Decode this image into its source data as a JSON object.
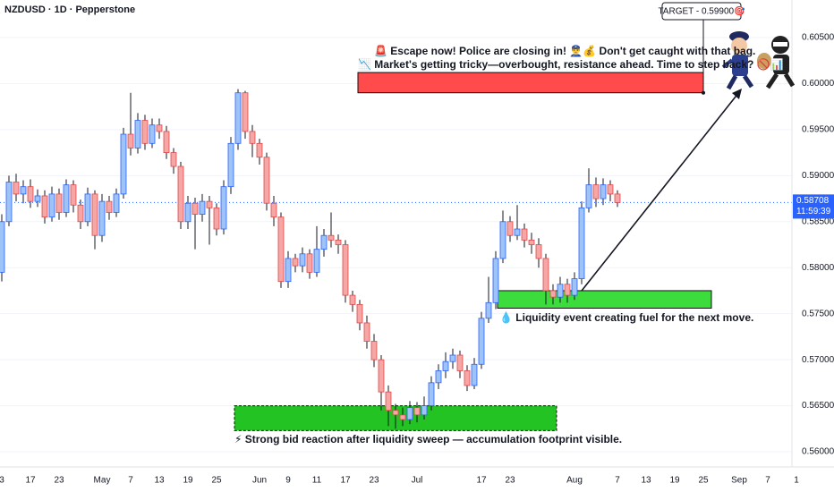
{
  "chart_data": {
    "type": "candlestick",
    "title": "NZDUSD · 1D · Pepperstone",
    "categories": [
      "3",
      null,
      null,
      null,
      "17",
      null,
      null,
      null,
      "23",
      null,
      null,
      null,
      null,
      null,
      "May",
      null,
      null,
      null,
      "7",
      null,
      null,
      null,
      "13",
      null,
      null,
      null,
      "19",
      null,
      null,
      null,
      "25",
      null,
      null,
      null,
      null,
      null,
      "Jun",
      null,
      null,
      null,
      "9",
      null,
      null,
      null,
      "11",
      null,
      null,
      null,
      "17",
      null,
      null,
      null,
      "23",
      null,
      null,
      null,
      null,
      null,
      "Jul",
      null,
      null,
      null,
      null,
      null,
      null,
      null,
      null,
      "17",
      null,
      null,
      null,
      "23",
      null,
      null,
      null,
      null,
      null,
      null,
      null,
      null,
      "Aug",
      null,
      null,
      null,
      null,
      null,
      "7",
      null,
      null,
      null,
      "13",
      null,
      null,
      null,
      "19",
      null,
      null,
      null,
      "25",
      null,
      null,
      null,
      null,
      "Sep",
      null,
      null,
      null,
      "7",
      null,
      null,
      null,
      "1"
    ],
    "open": [
      0.5795,
      0.585,
      0.5893,
      0.588,
      0.5888,
      0.5872,
      0.5878,
      0.5855,
      0.588,
      0.586,
      0.589,
      0.5868,
      0.585,
      0.588,
      0.5835,
      0.5872,
      0.586,
      0.588,
      0.5945,
      0.593,
      0.596,
      0.5935,
      0.5955,
      0.5948,
      0.5925,
      0.591,
      0.585,
      0.587,
      0.5858,
      0.5872,
      0.5865,
      0.5842,
      0.5888,
      0.5935,
      0.599,
      0.5948,
      0.5935,
      0.592,
      0.587,
      0.5855,
      0.5785,
      0.581,
      0.5802,
      0.5815,
      0.5795,
      0.582,
      0.5835,
      0.583,
      0.5825,
      0.577,
      0.576,
      0.574,
      0.572,
      0.57,
      0.5665,
      0.5645,
      0.564,
      0.5635,
      0.5648,
      0.564,
      0.565,
      0.5675,
      0.5688,
      0.5698,
      0.5705,
      0.5688,
      0.5672,
      0.5695,
      0.5745,
      0.5762,
      0.581,
      0.585,
      0.5835,
      0.5842,
      0.583,
      0.5825,
      0.581,
      0.5775,
      0.5768,
      0.5782,
      0.577,
      0.5788,
      0.5865,
      0.589,
      0.5875,
      0.589,
      0.588,
      null,
      null,
      null,
      null,
      null,
      null,
      null,
      null,
      null,
      null,
      null,
      null,
      null,
      null,
      null,
      null,
      null,
      null,
      null,
      null,
      null,
      null,
      null,
      null,
      null
    ],
    "high": [
      0.5858,
      0.59,
      0.5902,
      0.5895,
      0.5896,
      0.5885,
      0.5884,
      0.5888,
      0.5886,
      0.5896,
      0.5895,
      0.5874,
      0.5887,
      0.5884,
      0.588,
      0.5878,
      0.5886,
      0.5952,
      0.599,
      0.5968,
      0.5966,
      0.5962,
      0.5962,
      0.5954,
      0.593,
      0.5915,
      0.5878,
      0.5876,
      0.588,
      0.5878,
      0.587,
      0.5895,
      0.5942,
      0.5994,
      0.5992,
      0.5955,
      0.594,
      0.5925,
      0.5878,
      0.586,
      0.5818,
      0.5815,
      0.5822,
      0.582,
      0.5845,
      0.5842,
      0.586,
      0.5836,
      0.583,
      0.5775,
      0.5765,
      0.5748,
      0.5728,
      0.5705,
      0.5672,
      0.5652,
      0.5648,
      0.5655,
      0.5654,
      0.566,
      0.5682,
      0.5695,
      0.5708,
      0.5712,
      0.571,
      0.5694,
      0.5702,
      0.5752,
      0.579,
      0.5818,
      0.5862,
      0.5856,
      0.5868,
      0.5848,
      0.5838,
      0.5832,
      0.5815,
      0.5782,
      0.579,
      0.5788,
      0.5795,
      0.5872,
      0.5908,
      0.5898,
      0.5897,
      0.5895,
      0.5884,
      null,
      null,
      null,
      null,
      null,
      null,
      null,
      null,
      null,
      null,
      null,
      null,
      null,
      null,
      null,
      null,
      null,
      null,
      null,
      null,
      null,
      null,
      null,
      null,
      null
    ],
    "low": [
      0.5785,
      0.5845,
      0.5872,
      0.587,
      0.5865,
      0.5866,
      0.5848,
      0.585,
      0.5852,
      0.5855,
      0.586,
      0.5842,
      0.5845,
      0.582,
      0.5828,
      0.5852,
      0.5855,
      0.5875,
      0.5922,
      0.5924,
      0.5928,
      0.593,
      0.594,
      0.5918,
      0.5902,
      0.5842,
      0.5842,
      0.582,
      0.585,
      0.5825,
      0.5835,
      0.5836,
      0.588,
      0.5928,
      0.594,
      0.592,
      0.5912,
      0.5862,
      0.5845,
      0.5778,
      0.5778,
      0.5795,
      0.5795,
      0.5788,
      0.579,
      0.5812,
      0.5822,
      0.5815,
      0.5762,
      0.5752,
      0.5732,
      0.5712,
      0.5692,
      0.5645,
      0.5628,
      0.5625,
      0.5628,
      0.563,
      0.5632,
      0.5635,
      0.5645,
      0.5668,
      0.568,
      0.569,
      0.568,
      0.5666,
      0.5668,
      0.569,
      0.574,
      0.5755,
      0.5805,
      0.5828,
      0.583,
      0.5822,
      0.5815,
      0.58,
      0.576,
      0.576,
      0.5762,
      0.5762,
      0.5765,
      0.5782,
      0.586,
      0.5866,
      0.5868,
      0.5872,
      0.5866,
      null,
      null,
      null,
      null,
      null,
      null,
      null,
      null,
      null,
      null,
      null,
      null,
      null,
      null,
      null,
      null,
      null,
      null,
      null,
      null,
      null,
      null,
      null,
      null,
      null
    ],
    "close": [
      0.585,
      0.5893,
      0.588,
      0.5888,
      0.5872,
      0.5878,
      0.5855,
      0.588,
      0.586,
      0.589,
      0.5868,
      0.585,
      0.588,
      0.5835,
      0.5872,
      0.586,
      0.588,
      0.5945,
      0.593,
      0.596,
      0.5935,
      0.5955,
      0.5948,
      0.5925,
      0.591,
      0.585,
      0.587,
      0.5858,
      0.5872,
      0.5865,
      0.5842,
      0.5888,
      0.5935,
      0.599,
      0.5948,
      0.5935,
      0.592,
      0.587,
      0.5855,
      0.5785,
      0.581,
      0.5802,
      0.5815,
      0.5795,
      0.582,
      0.5835,
      0.583,
      0.5825,
      0.577,
      0.576,
      0.574,
      0.572,
      0.57,
      0.5665,
      0.5645,
      0.564,
      0.5635,
      0.5648,
      0.564,
      0.565,
      0.5675,
      0.5688,
      0.5698,
      0.5705,
      0.5688,
      0.5672,
      0.5695,
      0.5745,
      0.5762,
      0.581,
      0.585,
      0.5835,
      0.5842,
      0.583,
      0.5825,
      0.581,
      0.5775,
      0.5768,
      0.5782,
      0.577,
      0.5788,
      0.5865,
      0.589,
      0.5875,
      0.589,
      0.588,
      0.58708,
      null,
      null,
      null,
      null,
      null,
      null,
      null,
      null,
      null,
      null,
      null,
      null,
      null,
      null,
      null,
      null,
      null,
      null,
      null,
      null,
      null,
      null,
      null,
      null,
      null
    ],
    "up_color": "#9dc3f7",
    "up_border": "#2962ff",
    "down_color": "#f7a6a6",
    "down_border": "#e04848",
    "ylim": [
      0.55835,
      0.60908
    ],
    "yticks": [
      {
        "value": 0.56,
        "label": "0.56000"
      },
      {
        "value": 0.565,
        "label": "0.56500"
      },
      {
        "value": 0.57,
        "label": "0.57000"
      },
      {
        "value": 0.575,
        "label": "0.57500"
      },
      {
        "value": 0.58,
        "label": "0.58000"
      },
      {
        "value": 0.585,
        "label": "0.58500"
      },
      {
        "value": 0.59,
        "label": "0.59000"
      },
      {
        "value": 0.595,
        "label": "0.59500"
      },
      {
        "value": 0.6,
        "label": "0.60000"
      },
      {
        "value": 0.605,
        "label": "0.60500"
      }
    ],
    "last_price": 0.58708,
    "last_time": "11:59:39",
    "zones": [
      {
        "top": 0.6012,
        "bottom": 0.599,
        "color": "#ff4b4b"
      },
      {
        "top": 0.5775,
        "bottom": 0.5756,
        "color": "#3ddc3d"
      },
      {
        "top": 0.565,
        "bottom": 0.5623,
        "color": "#22c322"
      }
    ],
    "annotations": [
      "🚨 Escape now! Police are closing in! 👮‍♂️💰 Don't get caught with that bag.",
      "📉 Market's getting tricky—overbought, resistance ahead. Time to step back? 🚫📊",
      "💧 Liquidity event creating fuel for the next move.",
      "⚡ Strong bid reaction after liquidity sweep — accumulation footprint visible."
    ],
    "target_label": "TARGET - 0.59900🎯"
  }
}
